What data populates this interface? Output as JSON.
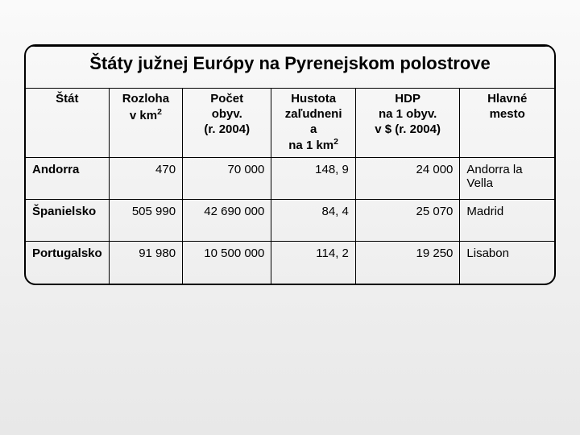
{
  "table": {
    "type": "table",
    "title": "Štáty južnej Európy na Pyrenejskom polostrove",
    "background_color": "#f2f2f2",
    "border_color": "#000000",
    "text_color": "#000000",
    "title_fontsize": 22,
    "header_fontsize": 15,
    "cell_fontsize": 15,
    "border_radius": 14,
    "columns": [
      {
        "label": "Štát",
        "align": "left",
        "width_pct": 15
      },
      {
        "label": "Rozloha v km²",
        "html": "Rozloha<br>v km<sup>2</sup>",
        "align": "right",
        "width_pct": 14
      },
      {
        "label": "Počet obyv. (r. 2004)",
        "html": "Počet<br>obyv.<br>(r. 2004)",
        "align": "right",
        "width_pct": 17
      },
      {
        "label": "Hustota zaľudnenia na 1 km²",
        "html": "Hustota<br>zaľudneni<br>a<br>na 1 km<sup>2</sup>",
        "align": "right",
        "width_pct": 16
      },
      {
        "label": "HDP na 1 obyv. v $ (r. 2004)",
        "html": "HDP<br>na 1 obyv.<br>v $ (r. 2004)",
        "align": "right",
        "width_pct": 20
      },
      {
        "label": "Hlavné mesto",
        "html": "Hlavné<br>mesto",
        "align": "left",
        "width_pct": 18
      }
    ],
    "rows": [
      {
        "state": "Andorra",
        "area": "470",
        "pop": "70 000",
        "density": "148, 9",
        "gdp": "24 000",
        "capital": "Andorra la Vella"
      },
      {
        "state": "Španielsko",
        "area": "505 990",
        "pop": "42 690 000",
        "density": "84, 4",
        "gdp": "25 070",
        "capital": "Madrid"
      },
      {
        "state": "Portugalsko",
        "area": "91 980",
        "pop": "10 500 000",
        "density": "114, 2",
        "gdp": "19 250",
        "capital": "Lisabon"
      }
    ]
  }
}
